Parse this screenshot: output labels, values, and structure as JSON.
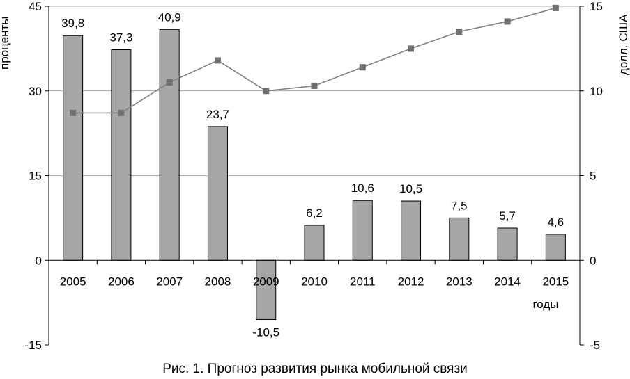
{
  "chart_data": {
    "type": "bar",
    "caption": "Рис. 1. Прогноз развития рынка мобильной связи",
    "xlabel": "годы",
    "ylabel_left": "проценты",
    "ylabel_right": "долл. США",
    "categories": [
      "2005",
      "2006",
      "2007",
      "2008",
      "2009",
      "2010",
      "2011",
      "2012",
      "2013",
      "2014",
      "2015"
    ],
    "left_axis": {
      "min": -15,
      "max": 45,
      "ticks": [
        -15,
        0,
        15,
        30,
        45
      ]
    },
    "right_axis": {
      "min": -5,
      "max": 15,
      "ticks": [
        -5,
        0,
        5,
        10,
        15
      ]
    },
    "grid": true,
    "series": [
      {
        "type": "bar",
        "axis": "left",
        "values": [
          39.8,
          37.3,
          40.9,
          23.7,
          -10.5,
          6.2,
          10.6,
          10.5,
          7.5,
          5.7,
          4.6
        ],
        "labels": [
          "39,8",
          "37,3",
          "40,9",
          "23,7",
          "-10,5",
          "6,2",
          "10,6",
          "10,5",
          "7,5",
          "5,7",
          "4,6"
        ],
        "color": "#a6a6a6"
      },
      {
        "type": "line",
        "axis": "right",
        "values": [
          8.7,
          8.7,
          10.5,
          11.8,
          10.0,
          10.3,
          11.4,
          12.5,
          13.5,
          14.1,
          14.9
        ],
        "color": "#808080"
      }
    ]
  }
}
